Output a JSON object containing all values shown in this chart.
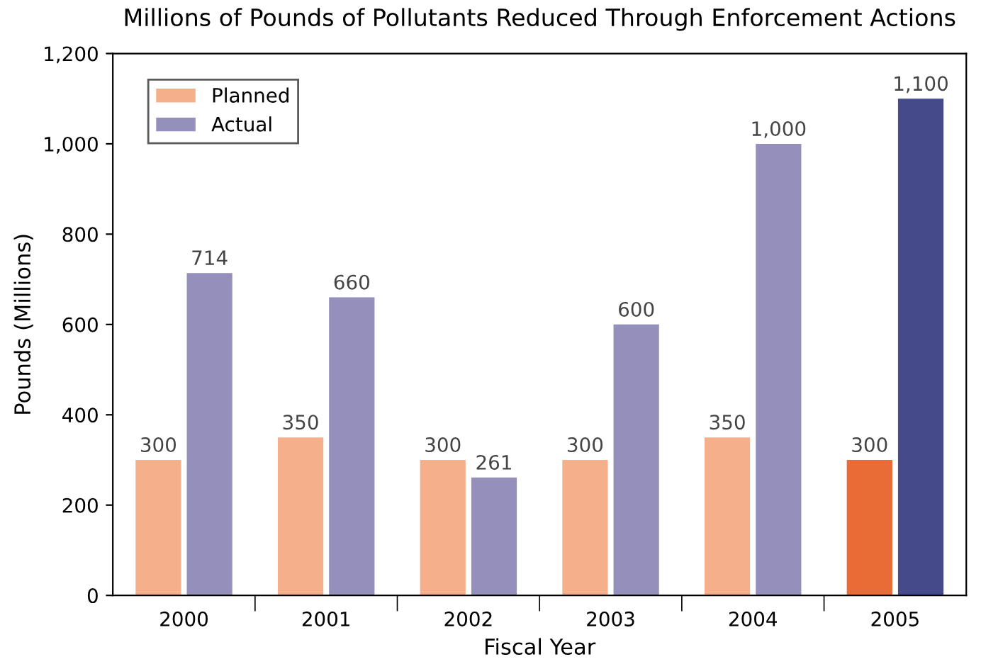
{
  "chart_data": {
    "type": "bar",
    "title": "Millions of Pounds of Pollutants Reduced Through Enforcement Actions",
    "xlabel": "Fiscal Year",
    "ylabel": "Pounds (Millions)",
    "categories": [
      "2000",
      "2001",
      "2002",
      "2003",
      "2004",
      "2005"
    ],
    "series": [
      {
        "name": "Planned",
        "color": "#f5b08b",
        "colors": [
          "#f5b08b",
          "#f5b08b",
          "#f5b08b",
          "#f5b08b",
          "#f5b08b",
          "#e96b36"
        ],
        "values": [
          300,
          350,
          300,
          300,
          350,
          300
        ],
        "value_labels": [
          "300",
          "350",
          "300",
          "300",
          "350",
          "300"
        ]
      },
      {
        "name": "Actual",
        "color": "#9490bb",
        "colors": [
          "#9490bb",
          "#9490bb",
          "#9490bb",
          "#9490bb",
          "#9490bb",
          "#444a8a"
        ],
        "values": [
          714,
          660,
          261,
          600,
          1000,
          1100
        ],
        "value_labels": [
          "714",
          "660",
          "261",
          "600",
          "1,000",
          "1,100"
        ]
      }
    ],
    "ylim": [
      0,
      1200
    ],
    "yticks": [
      0,
      200,
      400,
      600,
      800,
      {
        "value": 1000,
        "label": "1,000"
      },
      {
        "value": 1200,
        "label": "1,200"
      }
    ],
    "grid": false,
    "legend": "top left"
  }
}
